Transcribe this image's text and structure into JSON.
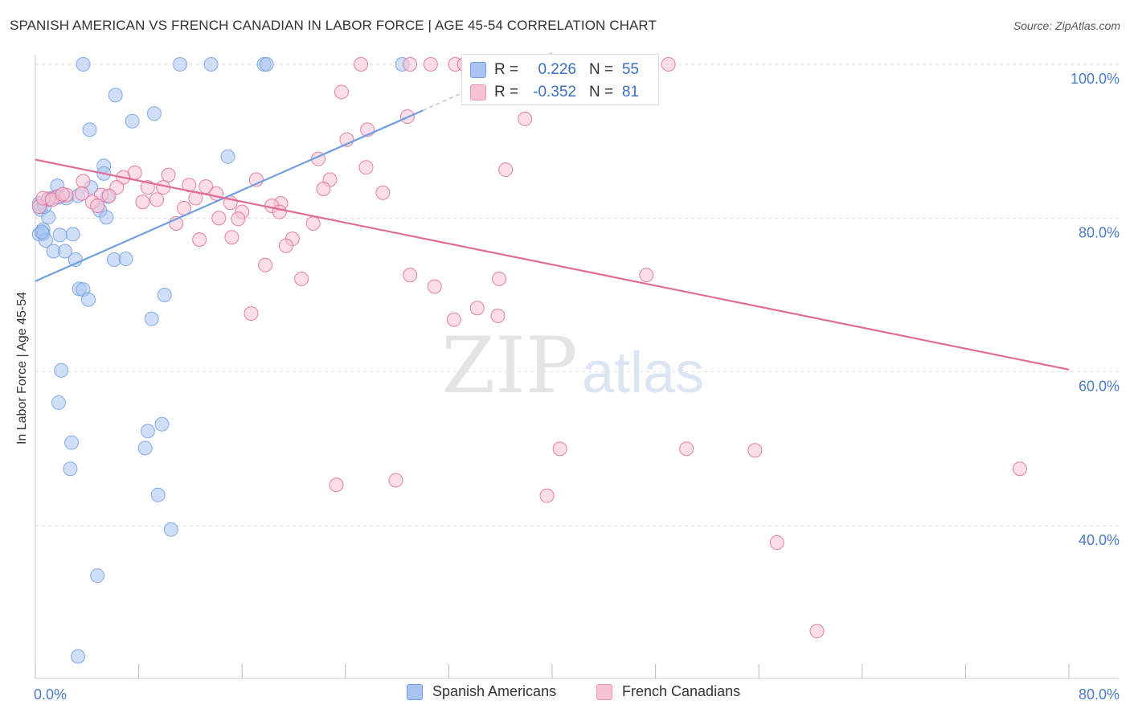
{
  "header": {
    "title": "SPANISH AMERICAN VS FRENCH CANADIAN IN LABOR FORCE | AGE 45-54 CORRELATION CHART",
    "source": "Source: ZipAtlas.com"
  },
  "watermark": {
    "zip": "ZIP",
    "atlas": "atlas"
  },
  "stats": [
    {
      "r_label": "R =",
      "r_value": "0.226",
      "n_label": "N =",
      "n_value": "55",
      "color": "#a9c4f0",
      "border": "#6f9fe0"
    },
    {
      "r_label": "R =",
      "r_value": "-0.352",
      "n_label": "N =",
      "n_value": "81",
      "color": "#f7c2d3",
      "border": "#ec9ab4"
    }
  ],
  "legend": [
    {
      "name": "Spanish Americans",
      "color": "#a9c4f0",
      "border": "#6f9fe0"
    },
    {
      "name": "French Canadians",
      "color": "#f7c2d3",
      "border": "#ec9ab4"
    }
  ],
  "chart_data": {
    "type": "scatter",
    "title": "SPANISH AMERICAN VS FRENCH CANADIAN IN LABOR FORCE | AGE 45-54 CORRELATION CHART",
    "xlabel": "",
    "ylabel": "In Labor Force | Age 45-54",
    "xlim": [
      0,
      80
    ],
    "ylim": [
      20,
      100
    ],
    "x_tick_labels": [
      "0.0%",
      "80.0%"
    ],
    "y_tick_labels": [
      "100.0%",
      "80.0%",
      "60.0%",
      "40.0%"
    ],
    "y_ticks": [
      100,
      80,
      60,
      40
    ],
    "grid": true,
    "legend_position": "bottom",
    "series": [
      {
        "name": "Spanish Americans",
        "color": "#6f9fe0",
        "fill": "#a9c4f0",
        "trend": {
          "x": [
            0,
            30
          ],
          "y": [
            71.8,
            94.0
          ],
          "dashed_to": [
            40,
            101.5
          ]
        },
        "points": [
          [
            3.7,
            100
          ],
          [
            11.2,
            100
          ],
          [
            13.6,
            100
          ],
          [
            17.7,
            100
          ],
          [
            17.9,
            100
          ],
          [
            28.4,
            100
          ],
          [
            6.2,
            96.0
          ],
          [
            7.5,
            92.6
          ],
          [
            9.2,
            93.6
          ],
          [
            4.2,
            91.5
          ],
          [
            14.9,
            88.0
          ],
          [
            5.3,
            86.8
          ],
          [
            5.3,
            85.8
          ],
          [
            1.7,
            84.2
          ],
          [
            4.3,
            84.0
          ],
          [
            3.3,
            82.9
          ],
          [
            2.4,
            82.6
          ],
          [
            1.3,
            82.6
          ],
          [
            1.8,
            82.7
          ],
          [
            5.6,
            82.8
          ],
          [
            0.3,
            81.9
          ],
          [
            0.4,
            81.1
          ],
          [
            1.0,
            80.1
          ],
          [
            5.0,
            81.0
          ],
          [
            5.5,
            80.1
          ],
          [
            0.6,
            78.5
          ],
          [
            0.3,
            77.9
          ],
          [
            0.6,
            78.0
          ],
          [
            2.9,
            77.9
          ],
          [
            1.9,
            77.8
          ],
          [
            0.8,
            77.1
          ],
          [
            1.4,
            75.7
          ],
          [
            2.3,
            75.7
          ],
          [
            3.1,
            74.6
          ],
          [
            6.1,
            74.6
          ],
          [
            7.0,
            74.7
          ],
          [
            3.4,
            70.8
          ],
          [
            3.7,
            70.7
          ],
          [
            4.1,
            69.4
          ],
          [
            10.0,
            70.0
          ],
          [
            9.0,
            66.9
          ],
          [
            2.0,
            60.2
          ],
          [
            1.8,
            56.0
          ],
          [
            9.8,
            53.2
          ],
          [
            8.7,
            52.3
          ],
          [
            2.8,
            50.8
          ],
          [
            8.5,
            50.1
          ],
          [
            2.7,
            47.4
          ],
          [
            9.5,
            44.0
          ],
          [
            10.5,
            39.5
          ],
          [
            4.8,
            33.5
          ],
          [
            3.3,
            23.0
          ],
          [
            1.0,
            82.4
          ],
          [
            0.7,
            81.5
          ],
          [
            0.5,
            78.2
          ]
        ]
      },
      {
        "name": "French Canadians",
        "color": "#e06b95",
        "fill": "#f7c2d3",
        "trend": {
          "x": [
            0,
            80
          ],
          "y": [
            87.6,
            60.3
          ]
        },
        "points": [
          [
            25.2,
            100
          ],
          [
            29.0,
            100
          ],
          [
            30.6,
            100
          ],
          [
            32.5,
            100
          ],
          [
            33.2,
            100
          ],
          [
            37.6,
            100
          ],
          [
            38.5,
            100
          ],
          [
            40.3,
            100
          ],
          [
            44.4,
            100
          ],
          [
            49.0,
            100
          ],
          [
            23.7,
            96.4
          ],
          [
            35.9,
            96.0
          ],
          [
            28.8,
            93.2
          ],
          [
            37.9,
            92.9
          ],
          [
            25.7,
            91.5
          ],
          [
            24.1,
            90.2
          ],
          [
            21.9,
            87.7
          ],
          [
            36.4,
            86.3
          ],
          [
            25.6,
            86.6
          ],
          [
            7.7,
            85.9
          ],
          [
            10.3,
            85.6
          ],
          [
            6.8,
            85.3
          ],
          [
            17.1,
            85.0
          ],
          [
            22.8,
            85.0
          ],
          [
            3.7,
            84.8
          ],
          [
            11.9,
            84.3
          ],
          [
            13.2,
            84.1
          ],
          [
            6.3,
            84.0
          ],
          [
            8.7,
            84.0
          ],
          [
            9.9,
            84.0
          ],
          [
            22.3,
            83.8
          ],
          [
            26.9,
            83.3
          ],
          [
            14.0,
            83.2
          ],
          [
            1.7,
            82.8
          ],
          [
            2.4,
            83.0
          ],
          [
            3.6,
            83.2
          ],
          [
            5.1,
            83.0
          ],
          [
            5.7,
            82.9
          ],
          [
            12.4,
            82.6
          ],
          [
            9.4,
            82.4
          ],
          [
            1.0,
            82.5
          ],
          [
            4.4,
            82.1
          ],
          [
            8.3,
            82.1
          ],
          [
            15.1,
            82.0
          ],
          [
            19.0,
            81.9
          ],
          [
            18.3,
            81.6
          ],
          [
            4.8,
            81.6
          ],
          [
            11.5,
            81.3
          ],
          [
            18.9,
            80.8
          ],
          [
            16.0,
            80.8
          ],
          [
            14.2,
            80.0
          ],
          [
            15.7,
            79.9
          ],
          [
            21.5,
            79.3
          ],
          [
            10.9,
            79.3
          ],
          [
            19.9,
            77.3
          ],
          [
            15.2,
            77.5
          ],
          [
            12.7,
            77.2
          ],
          [
            19.4,
            76.4
          ],
          [
            17.8,
            73.9
          ],
          [
            29.0,
            72.6
          ],
          [
            35.9,
            72.1
          ],
          [
            20.6,
            72.1
          ],
          [
            30.9,
            71.1
          ],
          [
            34.2,
            68.3
          ],
          [
            16.7,
            67.6
          ],
          [
            35.8,
            67.3
          ],
          [
            32.4,
            66.8
          ],
          [
            47.3,
            72.6
          ],
          [
            40.6,
            50.0
          ],
          [
            50.4,
            50.0
          ],
          [
            55.7,
            49.8
          ],
          [
            76.2,
            47.4
          ],
          [
            27.9,
            45.9
          ],
          [
            23.3,
            45.3
          ],
          [
            39.6,
            43.9
          ],
          [
            57.4,
            37.8
          ],
          [
            60.5,
            26.3
          ],
          [
            0.3,
            81.5
          ],
          [
            0.6,
            82.6
          ],
          [
            1.3,
            82.4
          ],
          [
            2.1,
            83.1
          ]
        ]
      }
    ]
  }
}
